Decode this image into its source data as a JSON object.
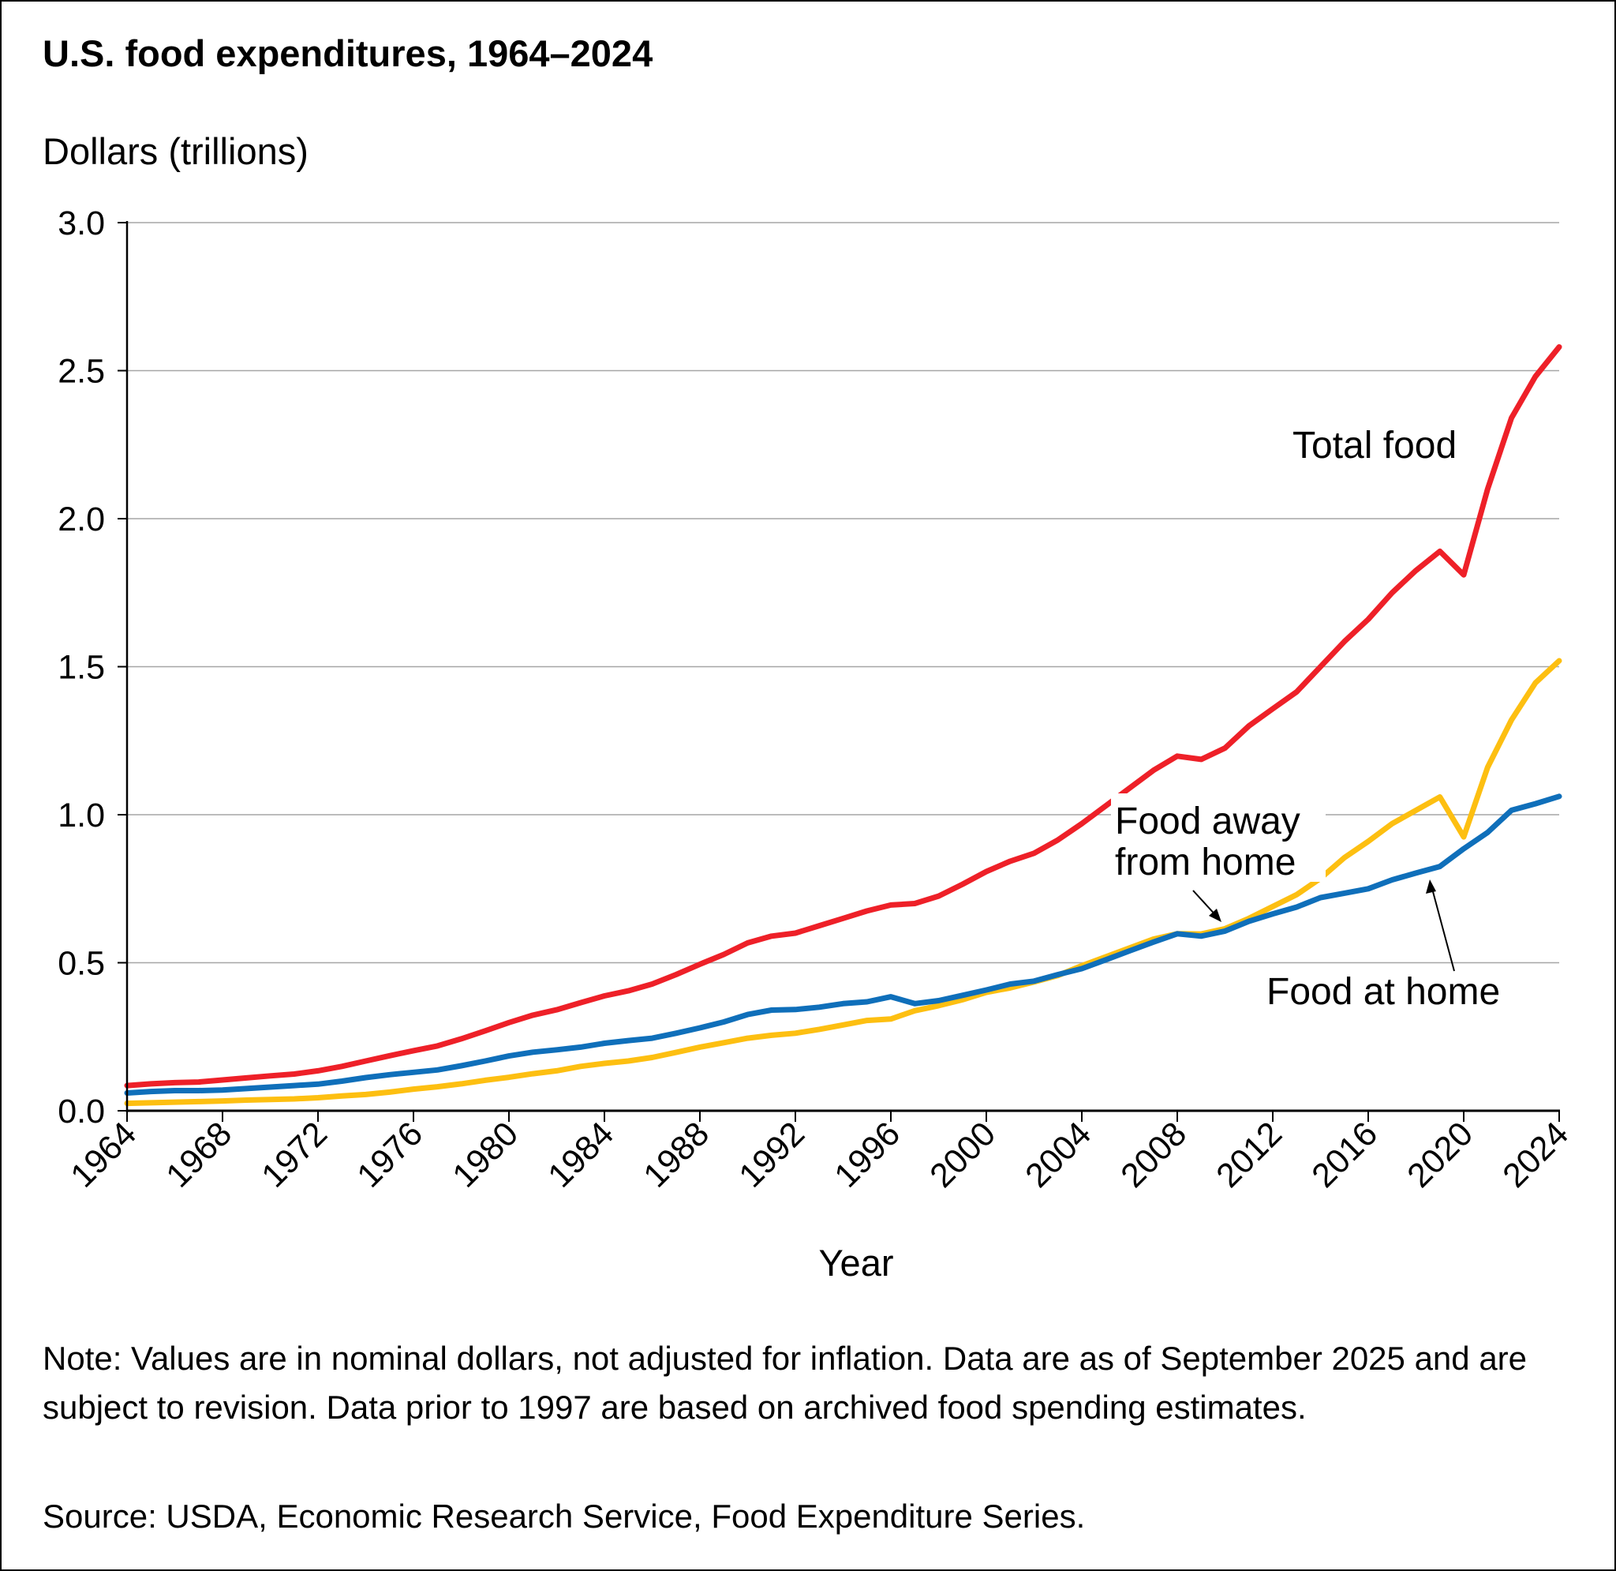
{
  "chart_data": {
    "type": "line",
    "title": "U.S. food expenditures, 1964–2024",
    "ylabel": "Dollars (trillions)",
    "xlabel": "Year",
    "xlim": [
      1964,
      2024
    ],
    "ylim": [
      0,
      3.0
    ],
    "yticks": [
      "0.0",
      "0.5",
      "1.0",
      "1.5",
      "2.0",
      "2.5",
      "3.0"
    ],
    "xticks": [
      "1964",
      "1968",
      "1972",
      "1976",
      "1980",
      "1984",
      "1988",
      "1992",
      "1996",
      "2000",
      "2004",
      "2008",
      "2012",
      "2016",
      "2020",
      "2024"
    ],
    "grid": "horizontal",
    "x": [
      1964,
      1965,
      1966,
      1967,
      1968,
      1969,
      1970,
      1971,
      1972,
      1973,
      1974,
      1975,
      1976,
      1977,
      1978,
      1979,
      1980,
      1981,
      1982,
      1983,
      1984,
      1985,
      1986,
      1987,
      1988,
      1989,
      1990,
      1991,
      1992,
      1993,
      1994,
      1995,
      1996,
      1997,
      1998,
      1999,
      2000,
      2001,
      2002,
      2003,
      2004,
      2005,
      2006,
      2007,
      2008,
      2009,
      2010,
      2011,
      2012,
      2013,
      2014,
      2015,
      2016,
      2017,
      2018,
      2019,
      2020,
      2021,
      2022,
      2023,
      2024
    ],
    "series": [
      {
        "name": "Total food",
        "color": "#ee2028",
        "values": [
          0.085,
          0.091,
          0.095,
          0.097,
          0.104,
          0.111,
          0.118,
          0.124,
          0.135,
          0.15,
          0.168,
          0.186,
          0.203,
          0.219,
          0.243,
          0.27,
          0.298,
          0.323,
          0.341,
          0.365,
          0.388,
          0.405,
          0.428,
          0.46,
          0.495,
          0.528,
          0.567,
          0.59,
          0.6,
          0.625,
          0.65,
          0.675,
          0.695,
          0.7,
          0.725,
          0.765,
          0.808,
          0.843,
          0.87,
          0.915,
          0.97,
          1.03,
          1.09,
          1.15,
          1.198,
          1.187,
          1.225,
          1.3,
          1.358,
          1.415,
          1.5,
          1.585,
          1.66,
          1.75,
          1.825,
          1.89,
          1.81,
          2.1,
          2.34,
          2.48,
          2.58
        ]
      },
      {
        "name": "Food at home",
        "color": "#0f6fba",
        "values": [
          0.06,
          0.065,
          0.068,
          0.068,
          0.07,
          0.075,
          0.08,
          0.085,
          0.09,
          0.1,
          0.112,
          0.122,
          0.13,
          0.138,
          0.152,
          0.168,
          0.185,
          0.198,
          0.206,
          0.215,
          0.228,
          0.237,
          0.245,
          0.262,
          0.28,
          0.3,
          0.325,
          0.34,
          0.342,
          0.35,
          0.362,
          0.368,
          0.385,
          0.362,
          0.372,
          0.39,
          0.408,
          0.428,
          0.438,
          0.46,
          0.48,
          0.51,
          0.54,
          0.57,
          0.598,
          0.59,
          0.607,
          0.64,
          0.665,
          0.688,
          0.72,
          0.735,
          0.75,
          0.78,
          0.803,
          0.825,
          0.885,
          0.94,
          1.015,
          1.037,
          1.062
        ]
      },
      {
        "name": "Food away from home",
        "color": "#fdbf11",
        "values": [
          0.025,
          0.027,
          0.029,
          0.031,
          0.033,
          0.036,
          0.038,
          0.04,
          0.044,
          0.05,
          0.055,
          0.063,
          0.073,
          0.081,
          0.091,
          0.103,
          0.113,
          0.125,
          0.135,
          0.15,
          0.16,
          0.168,
          0.18,
          0.197,
          0.215,
          0.23,
          0.245,
          0.255,
          0.262,
          0.275,
          0.29,
          0.305,
          0.31,
          0.338,
          0.355,
          0.375,
          0.4,
          0.415,
          0.435,
          0.457,
          0.49,
          0.52,
          0.55,
          0.58,
          0.598,
          0.597,
          0.615,
          0.65,
          0.69,
          0.73,
          0.785,
          0.855,
          0.91,
          0.97,
          1.015,
          1.06,
          0.925,
          1.16,
          1.32,
          1.445,
          1.52
        ]
      }
    ],
    "annotations": {
      "total": "Total food",
      "away_line1": "Food away",
      "away_line2": "from home",
      "home": "Food at home"
    }
  },
  "note": "Note: Values are in nominal dollars, not adjusted for inflation. Data are as of September 2025 and are subject to revision. Data prior to 1997 are based on archived food spending estimates.",
  "source": "Source: USDA, Economic Research Service, Food Expenditure Series."
}
